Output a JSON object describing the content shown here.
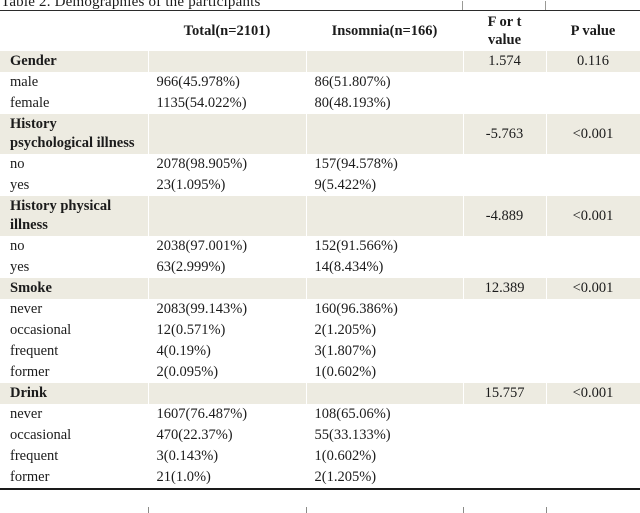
{
  "title": "Table 2. Demographies of the participants",
  "colors": {
    "row_shading": "#edebe1",
    "rule": "#1a1a1a",
    "text": "#1b1b1b"
  },
  "table": {
    "columns": [
      "",
      "Total(n=2101)",
      "Insomnia(n=166)",
      "F or t value",
      "P value"
    ],
    "rows": [
      {
        "type": "section",
        "label": "Gender",
        "total": "",
        "insomnia": "",
        "f": "1.574",
        "p": "0.116"
      },
      {
        "type": "item",
        "label": "male",
        "total": "966(45.978%)",
        "insomnia": "86(51.807%)",
        "f": "",
        "p": ""
      },
      {
        "type": "item",
        "label": "female",
        "total": "1135(54.022%)",
        "insomnia": "80(48.193%)",
        "f": "",
        "p": ""
      },
      {
        "type": "section",
        "label": "History psychological illness",
        "total": "",
        "insomnia": "",
        "f": "-5.763",
        "p": "<0.001"
      },
      {
        "type": "item",
        "label": "no",
        "total": "2078(98.905%)",
        "insomnia": "157(94.578%)",
        "f": "",
        "p": ""
      },
      {
        "type": "item",
        "label": "yes",
        "total": "23(1.095%)",
        "insomnia": "9(5.422%)",
        "f": "",
        "p": ""
      },
      {
        "type": "section",
        "label": "History physical illness",
        "total": "",
        "insomnia": "",
        "f": "-4.889",
        "p": "<0.001"
      },
      {
        "type": "item",
        "label": "no",
        "total": "2038(97.001%)",
        "insomnia": "152(91.566%)",
        "f": "",
        "p": ""
      },
      {
        "type": "item",
        "label": "yes",
        "total": "63(2.999%)",
        "insomnia": "14(8.434%)",
        "f": "",
        "p": ""
      },
      {
        "type": "section",
        "label": "Smoke",
        "total": "",
        "insomnia": "",
        "f": "12.389",
        "p": "<0.001"
      },
      {
        "type": "item",
        "label": "never",
        "total": "2083(99.143%)",
        "insomnia": "160(96.386%)",
        "f": "",
        "p": ""
      },
      {
        "type": "item",
        "label": "occasional",
        "total": "12(0.571%)",
        "insomnia": "2(1.205%)",
        "f": "",
        "p": ""
      },
      {
        "type": "item",
        "label": "frequent",
        "total": "4(0.19%)",
        "insomnia": "3(1.807%)",
        "f": "",
        "p": ""
      },
      {
        "type": "item",
        "label": "former",
        "total": "2(0.095%)",
        "insomnia": "1(0.602%)",
        "f": "",
        "p": ""
      },
      {
        "type": "section",
        "label": "Drink",
        "total": "",
        "insomnia": "",
        "f": "15.757",
        "p": "<0.001"
      },
      {
        "type": "item",
        "label": "never",
        "total": "1607(76.487%)",
        "insomnia": "108(65.06%)",
        "f": "",
        "p": ""
      },
      {
        "type": "item",
        "label": "occasional",
        "total": "470(22.37%)",
        "insomnia": "55(33.133%)",
        "f": "",
        "p": ""
      },
      {
        "type": "item",
        "label": "frequent",
        "total": "3(0.143%)",
        "insomnia": "1(0.602%)",
        "f": "",
        "p": ""
      },
      {
        "type": "item",
        "label": "former",
        "total": "21(1.0%)",
        "insomnia": "2(1.205%)",
        "f": "",
        "p": ""
      }
    ]
  }
}
